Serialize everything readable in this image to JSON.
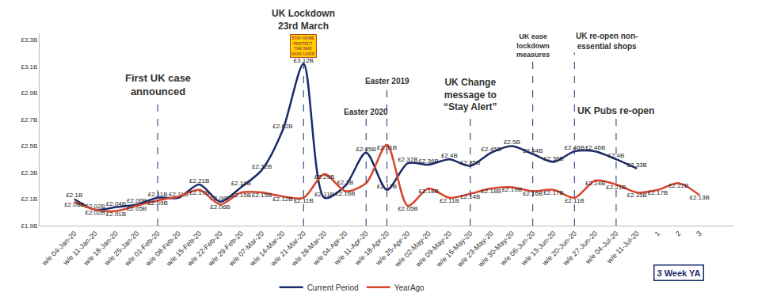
{
  "chart_data": {
    "type": "line",
    "categories": [
      "w/e 04-Jan-20",
      "w/e 11-Jan-20",
      "w/e 18-Jan-20",
      "w/e 25-Jan-20",
      "w/e 01-Feb-20",
      "w/e 08-Feb-20",
      "w/e 15-Feb-20",
      "w/e 22-Feb-20",
      "w/e 29-Feb-20",
      "w/e 07-Mar-20",
      "w/e 14-Mar-20",
      "w/e 21-Mar-20",
      "w/e 28-Mar-20",
      "w/e 04-Apr-20",
      "w/e 11-Apr-20",
      "w/e 18-Apr-20",
      "w/e 25-Apr-20",
      "w/e 02-May-20",
      "w/e 09-May-20",
      "w/e 16-May-20",
      "w/e 23-May-20",
      "w/e 30-May-20",
      "w/e 06-Jun-20",
      "w/e 13-Jun-20",
      "w/e 20-Jun-20",
      "w/e 27-Jun-20",
      "w/e 04-Jul-20",
      "w/e 11-Jul-20",
      "1",
      "2",
      "3"
    ],
    "series": [
      {
        "name": "Current Period",
        "color": "#1b2a6b",
        "values": [
          2.1,
          2.02,
          2.04,
          2.06,
          2.11,
          2.11,
          2.21,
          2.08,
          2.19,
          2.32,
          2.62,
          3.12,
          2.11,
          2.2,
          2.45,
          2.17,
          2.37,
          2.36,
          2.4,
          2.35,
          2.45,
          2.5,
          2.44,
          2.38,
          2.46,
          2.46,
          2.4,
          2.33,
          null,
          null,
          null
        ],
        "value_labels": [
          "£2.1B",
          "£2.02B",
          "£2.04B",
          "£2.06B",
          "£2.11B",
          "£2.11B",
          "£2.21B",
          "£2.08B",
          "£2.19B",
          "£2.32B",
          "£2.62B",
          "£3.12B",
          "£2.11B",
          "£2.2B",
          "£2.45B",
          "£2.17B",
          "£2.37B",
          "£2.36B",
          "£2.4B",
          "£2.35B",
          "£2.45B",
          "£2.5B",
          "£2.44B",
          "£2.38B",
          "£2.46B",
          "£2.46B",
          "£2.4B",
          "£2.33B",
          null,
          null,
          null
        ]
      },
      {
        "name": "YearAgo",
        "color": "#d9452b",
        "values": [
          2.08,
          2.02,
          2.01,
          2.05,
          2.09,
          2.12,
          2.17,
          2.06,
          2.15,
          2.15,
          2.12,
          2.11,
          2.29,
          2.16,
          2.22,
          2.51,
          2.05,
          2.18,
          2.11,
          2.14,
          2.18,
          2.19,
          2.16,
          2.17,
          2.11,
          2.24,
          2.21,
          2.15,
          2.17,
          2.22,
          2.13
        ],
        "value_labels": [
          "£2.08B",
          "£2.02B",
          "£2.01B",
          "£2.05B",
          "£2.09B",
          null,
          "£2.17B",
          "£2.06B",
          "£2.15B",
          "£2.15B",
          "£2.12B",
          "£2.11B",
          "£2.29B",
          "£2.16B",
          null,
          "£2.51B",
          "£2.05B",
          "£2.18B",
          "£2.11B",
          "£2.14B",
          "£2.18B",
          "£2.19B",
          "£2.16B",
          "£2.17B",
          "£2.11B",
          "£2.24B",
          "£2.21B",
          "£2.15B",
          "£2.17B",
          "£2.22B",
          "£2.13B"
        ]
      }
    ],
    "ylim": [
      1.9,
      3.35
    ],
    "yticks": [
      {
        "value": 1.9,
        "label": "£1.9B"
      },
      {
        "value": 2.1,
        "label": "£2.1B"
      },
      {
        "value": 2.3,
        "label": "£2.3B"
      },
      {
        "value": 2.5,
        "label": "£2.5B"
      },
      {
        "value": 2.7,
        "label": "£2.7B"
      },
      {
        "value": 2.9,
        "label": "£2.9B"
      },
      {
        "value": 3.1,
        "label": "£3.1B"
      },
      {
        "value": 3.3,
        "label": "£3.3B"
      }
    ],
    "grid": false,
    "legend": "bottom",
    "data_labels": true,
    "annotations": [
      {
        "text": "First UK case\nannounced",
        "at": "w/e 01-Feb-20"
      },
      {
        "text": "UK Lockdown\n23rd March",
        "at": "w/e 21-Mar-20",
        "badge": "STAY HOME\nPROTECT\nTHE NHS\nSAVE LIVES"
      },
      {
        "text": "Easter 2020",
        "at": "w/e 11-Apr-20"
      },
      {
        "text": "Easter 2019",
        "at": "w/e 18-Apr-20"
      },
      {
        "text": "UK Change\nmessage to\n“Stay Alert”",
        "at": "w/e 16-May-20"
      },
      {
        "text": "UK ease\nlockdown\nmeasures",
        "at": "w/e 06-Jun-20"
      },
      {
        "text": "UK re-open non-\nessential shops",
        "at": "w/e 20-Jun-20"
      },
      {
        "text": "UK Pubs re-open",
        "at": "w/e 04-Jul-20"
      }
    ],
    "bracket": {
      "text": "3 Week YA",
      "from": "1",
      "to": "3"
    }
  }
}
